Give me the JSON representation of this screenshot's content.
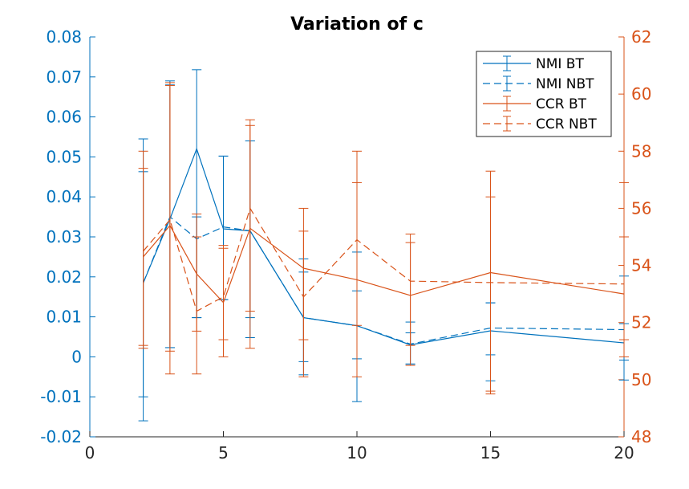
{
  "chart_data": {
    "type": "line",
    "title": "Variation of c",
    "x": [
      2,
      3,
      4,
      5,
      6,
      8,
      10,
      12,
      15,
      20
    ],
    "xlim": [
      0,
      20
    ],
    "xticks": [
      0,
      5,
      10,
      15,
      20
    ],
    "xtick_labels": [
      "0",
      "5",
      "10",
      "15",
      "20"
    ],
    "left_axis": {
      "ylim": [
        -0.02,
        0.08
      ],
      "ticks": [
        -0.02,
        -0.01,
        0,
        0.01,
        0.02,
        0.03,
        0.04,
        0.05,
        0.06,
        0.07,
        0.08
      ],
      "tick_labels": [
        "-0.02",
        "-0.01",
        "0",
        "0.01",
        "0.02",
        "0.03",
        "0.04",
        "0.05",
        "0.06",
        "0.07",
        "0.08"
      ],
      "color": "#0072BD"
    },
    "right_axis": {
      "ylim": [
        48,
        62
      ],
      "ticks": [
        48,
        50,
        52,
        54,
        56,
        58,
        60,
        62
      ],
      "tick_labels": [
        "48",
        "50",
        "52",
        "54",
        "56",
        "58",
        "60",
        "62"
      ],
      "color": "#D95319"
    },
    "legend_position": "top-right",
    "series": [
      {
        "name": "NMI BT",
        "axis": "left",
        "style": "solid",
        "color": "#0072BD",
        "values": [
          0.0185,
          0.0345,
          0.052,
          0.032,
          0.0315,
          0.0098,
          0.0078,
          0.003,
          0.0065,
          0.0035
        ],
        "lower": [
          -0.016,
          0.0023,
          0.0098,
          0.0143,
          0.0048,
          -0.0045,
          -0.0112,
          -0.0018,
          -0.006,
          -0.0058
        ],
        "upper": [
          0.0545,
          0.069,
          0.0718,
          0.0502,
          0.054,
          0.0245,
          0.0262,
          0.0087,
          0.0135,
          0.0202
        ]
      },
      {
        "name": "NMI NBT",
        "axis": "left",
        "style": "dashed",
        "color": "#0072BD",
        "values": [
          0.0185,
          0.035,
          0.0295,
          0.0325,
          0.0315,
          0.0098,
          0.0078,
          0.0032,
          0.0072,
          0.0068
        ],
        "lower": [
          -0.01,
          0.0023,
          0.0098,
          0.0143,
          0.0098,
          -0.0012,
          -0.0005,
          -0.0018,
          0.0005,
          -0.0008
        ],
        "upper": [
          0.0463,
          0.068,
          0.035,
          0.0502,
          0.054,
          0.0212,
          0.0165,
          0.006,
          0.0135,
          0.0083
        ]
      },
      {
        "name": "CCR BT",
        "axis": "right",
        "style": "solid",
        "color": "#D95319",
        "values": [
          54.3,
          55.4,
          53.7,
          52.7,
          55.3,
          53.9,
          53.5,
          52.95,
          53.75,
          53.0
        ],
        "lower": [
          51.1,
          50.2,
          50.2,
          50.8,
          51.1,
          50.1,
          50.1,
          50.5,
          49.5,
          50.8
        ],
        "upper": [
          57.4,
          60.4,
          55.8,
          54.6,
          59.1,
          56.0,
          56.9,
          55.1,
          57.3,
          55.0
        ]
      },
      {
        "name": "CCR NBT",
        "axis": "right",
        "style": "dashed",
        "color": "#D95319",
        "values": [
          54.5,
          55.6,
          52.4,
          52.9,
          56.0,
          52.9,
          54.9,
          53.45,
          53.4,
          53.35
        ],
        "lower": [
          51.2,
          51.0,
          51.7,
          51.4,
          52.4,
          51.4,
          51.9,
          51.2,
          49.6,
          51.4
        ],
        "upper": [
          58.0,
          60.3,
          55.0,
          54.7,
          58.9,
          55.2,
          58.0,
          54.8,
          56.4,
          56.9
        ]
      }
    ]
  }
}
